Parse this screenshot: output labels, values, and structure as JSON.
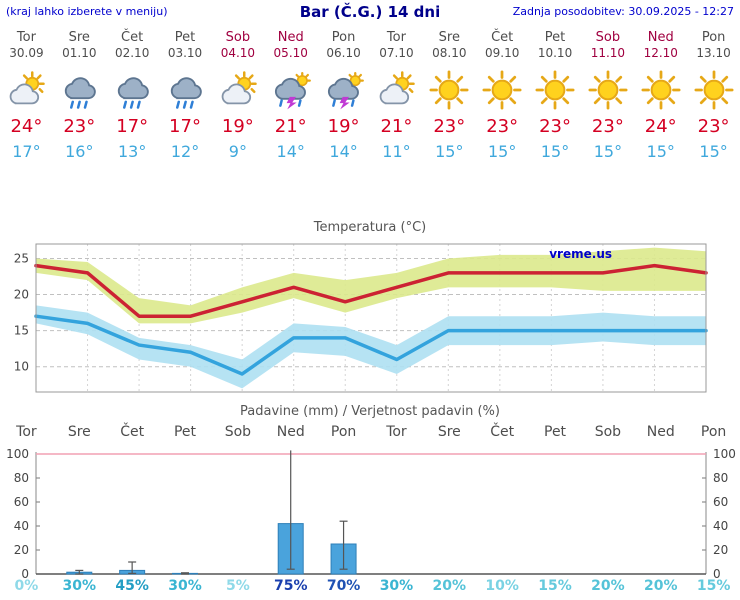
{
  "header": {
    "left_note": "(kraj lahko izberete v meniju)",
    "title": "Bar (Č.G.) 14 dni",
    "updated": "Zadnja posodobitev: 30.09.2025 - 12:27"
  },
  "colors": {
    "weekday_text": "#4d4d4d",
    "weekend_text": "#a00040",
    "tmax_text": "#d40022",
    "tmin_text": "#3fa8dc",
    "bar_fill": "#4aa3dc",
    "bar_stroke": "#2e7fb8",
    "limit_line_100": "#f2a0b4"
  },
  "days": [
    {
      "name": "Tor",
      "date": "30.09",
      "weekend": false,
      "icon": "cloud-sun",
      "tmax": "24°",
      "tmin": "17°"
    },
    {
      "name": "Sre",
      "date": "01.10",
      "weekend": false,
      "icon": "cloud-rain",
      "tmax": "23°",
      "tmin": "16°"
    },
    {
      "name": "Čet",
      "date": "02.10",
      "weekend": false,
      "icon": "cloud-rain",
      "tmax": "17°",
      "tmin": "13°"
    },
    {
      "name": "Pet",
      "date": "03.10",
      "weekend": false,
      "icon": "cloud-rain",
      "tmax": "17°",
      "tmin": "12°"
    },
    {
      "name": "Sob",
      "date": "04.10",
      "weekend": true,
      "icon": "cloud-sun",
      "tmax": "19°",
      "tmin": "9°"
    },
    {
      "name": "Ned",
      "date": "05.10",
      "weekend": true,
      "icon": "thunder",
      "tmax": "21°",
      "tmin": "14°"
    },
    {
      "name": "Pon",
      "date": "06.10",
      "weekend": false,
      "icon": "thunder",
      "tmax": "19°",
      "tmin": "14°"
    },
    {
      "name": "Tor",
      "date": "07.10",
      "weekend": false,
      "icon": "cloud-sun",
      "tmax": "21°",
      "tmin": "11°"
    },
    {
      "name": "Sre",
      "date": "08.10",
      "weekend": false,
      "icon": "sun",
      "tmax": "23°",
      "tmin": "15°"
    },
    {
      "name": "Čet",
      "date": "09.10",
      "weekend": false,
      "icon": "sun",
      "tmax": "23°",
      "tmin": "15°"
    },
    {
      "name": "Pet",
      "date": "10.10",
      "weekend": false,
      "icon": "sun",
      "tmax": "23°",
      "tmin": "15°"
    },
    {
      "name": "Sob",
      "date": "11.10",
      "weekend": true,
      "icon": "sun",
      "tmax": "23°",
      "tmin": "15°"
    },
    {
      "name": "Ned",
      "date": "12.10",
      "weekend": true,
      "icon": "sun",
      "tmax": "24°",
      "tmin": "15°"
    },
    {
      "name": "Pon",
      "date": "13.10",
      "weekend": false,
      "icon": "sun",
      "tmax": "23°",
      "tmin": "15°"
    }
  ],
  "chart_data": [
    {
      "type": "line",
      "title": "Temperatura (°C)",
      "watermark": "vreme.us",
      "x": [
        "Tor",
        "Sre",
        "Čet",
        "Pet",
        "Sob",
        "Ned",
        "Pon",
        "Tor",
        "Sre",
        "Čet",
        "Pet",
        "Sob",
        "Ned",
        "Pon"
      ],
      "ylim": [
        6.5,
        27
      ],
      "yticks": [
        10,
        15,
        20,
        25
      ],
      "grid": true,
      "series": [
        {
          "name": "tmax",
          "color": "#cc2233",
          "band_color": "#dce98c",
          "values": [
            24,
            23,
            17,
            17,
            19,
            21,
            19,
            21,
            23,
            23,
            23,
            23,
            24,
            23
          ],
          "band_high": [
            25,
            24.5,
            19.5,
            18.5,
            21,
            23,
            22,
            23,
            25,
            25.5,
            25.5,
            26,
            26.5,
            26
          ],
          "band_low": [
            23,
            22,
            16,
            16,
            17.5,
            19.5,
            17.5,
            19.5,
            21,
            21,
            21,
            20.5,
            20.5,
            20.5
          ]
        },
        {
          "name": "tmin",
          "color": "#33a3dd",
          "band_color": "#aee0f2",
          "values": [
            17,
            16,
            13,
            12,
            9,
            14,
            14,
            11,
            15,
            15,
            15,
            15,
            15,
            15
          ],
          "band_high": [
            18.5,
            17.5,
            14,
            13,
            11,
            16,
            15.5,
            13,
            17,
            17,
            17,
            17.5,
            17,
            17
          ],
          "band_low": [
            16,
            14.5,
            11,
            10,
            7,
            12,
            11.5,
            9,
            13,
            13,
            13,
            13.5,
            13,
            13
          ]
        }
      ]
    },
    {
      "type": "bar",
      "title": "Padavine (mm) / Verjetnost padavin (%)",
      "categories": [
        "Tor",
        "Sre",
        "Čet",
        "Pet",
        "Sob",
        "Ned",
        "Pon",
        "Tor",
        "Sre",
        "Čet",
        "Pet",
        "Sob",
        "Ned",
        "Pon"
      ],
      "weekend": [
        false,
        false,
        false,
        false,
        true,
        true,
        false,
        false,
        false,
        false,
        false,
        true,
        true,
        false
      ],
      "values": [
        0,
        1.5,
        3,
        0.5,
        0,
        42,
        25,
        0,
        0,
        0,
        0,
        0,
        0,
        0
      ],
      "whisker_low": [
        0,
        0,
        0.5,
        0,
        0,
        4,
        4,
        0,
        0,
        0,
        0,
        0,
        0,
        0
      ],
      "whisker_high": [
        0,
        3,
        10,
        1,
        0,
        104,
        44,
        0,
        0,
        0,
        0,
        0,
        0,
        0
      ],
      "ylim": [
        0,
        100
      ],
      "yticks": [
        0,
        20,
        40,
        60,
        80,
        100
      ],
      "probabilities": [
        "0%",
        "30%",
        "45%",
        "30%",
        "5%",
        "75%",
        "70%",
        "30%",
        "20%",
        "10%",
        "15%",
        "20%",
        "20%",
        "15%"
      ],
      "prob_colors": [
        "#8fd9e8",
        "#3ab5d2",
        "#249ec4",
        "#3ab5d2",
        "#8fd9e8",
        "#1a3fae",
        "#1f52b4",
        "#3ab5d2",
        "#55c3d8",
        "#7ad2e3",
        "#66cadd",
        "#55c3d8",
        "#55c3d8",
        "#66cadd"
      ]
    }
  ]
}
